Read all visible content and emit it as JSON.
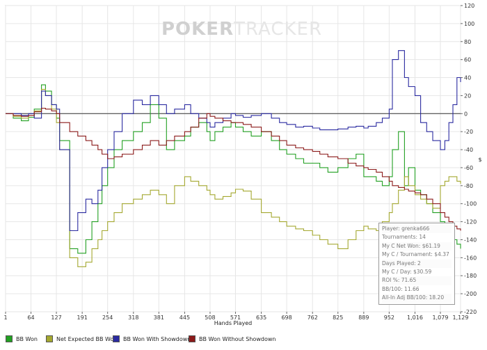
{
  "watermark": {
    "left": "POKER",
    "right": "TRACKER"
  },
  "chart_data": {
    "type": "line",
    "xlabel": "Hands Played",
    "ylabel": "$",
    "xlim": [
      1,
      1129
    ],
    "ylim": [
      -220,
      120
    ],
    "x_ticks": [
      "1",
      "64",
      "127",
      "191",
      "254",
      "318",
      "381",
      "445",
      "508",
      "571",
      "635",
      "698",
      "762",
      "825",
      "889",
      "952",
      "1,016",
      "1,079",
      "1,129"
    ],
    "y_ticks": [
      "120",
      "100",
      "80",
      "60",
      "40",
      "20",
      "0",
      "-20",
      "-40",
      "-60",
      "-80",
      "-100",
      "-120",
      "-140",
      "-160",
      "-180",
      "-200",
      "-220"
    ],
    "x_tick_values": [
      1,
      64,
      127,
      191,
      254,
      318,
      381,
      445,
      508,
      571,
      635,
      698,
      762,
      825,
      889,
      952,
      1016,
      1079,
      1129
    ],
    "y_tick_values": [
      120,
      100,
      80,
      60,
      40,
      20,
      0,
      -20,
      -40,
      -60,
      -80,
      -100,
      -120,
      -140,
      -160,
      -180,
      -200,
      -220
    ],
    "grid": true,
    "legend_position": "bottom",
    "series": [
      {
        "name": "BB Won",
        "color": "#22a022",
        "x": [
          1,
          20,
          40,
          58,
          72,
          90,
          100,
          115,
          127,
          135,
          160,
          180,
          200,
          215,
          230,
          240,
          254,
          270,
          290,
          318,
          340,
          360,
          381,
          400,
          420,
          445,
          460,
          480,
          500,
          508,
          520,
          540,
          560,
          571,
          590,
          610,
          635,
          660,
          680,
          698,
          720,
          740,
          762,
          780,
          800,
          825,
          850,
          870,
          889,
          900,
          920,
          935,
          952,
          960,
          975,
          990,
          1000,
          1016,
          1030,
          1045,
          1060,
          1079,
          1090,
          1100,
          1110,
          1120,
          1129
        ],
        "y": [
          0,
          -5,
          -8,
          -4,
          5,
          32,
          25,
          10,
          -5,
          -30,
          -150,
          -155,
          -140,
          -120,
          -100,
          -80,
          -60,
          -40,
          -30,
          -20,
          -10,
          10,
          -5,
          -40,
          -30,
          -25,
          -15,
          -10,
          -20,
          -30,
          -20,
          -15,
          -10,
          -15,
          -20,
          -25,
          -20,
          -30,
          -40,
          -45,
          -50,
          -55,
          -55,
          -60,
          -65,
          -60,
          -50,
          -45,
          -70,
          -70,
          -75,
          -80,
          -70,
          -40,
          -20,
          -80,
          -60,
          -85,
          -90,
          -100,
          -110,
          -120,
          -125,
          -130,
          -140,
          -145,
          -150
        ]
      },
      {
        "name": "Net Expected BB Won",
        "color": "#a4a830",
        "x": [
          1,
          20,
          40,
          58,
          72,
          90,
          100,
          115,
          127,
          135,
          160,
          180,
          200,
          215,
          230,
          240,
          254,
          270,
          290,
          318,
          340,
          360,
          381,
          400,
          420,
          445,
          460,
          480,
          500,
          508,
          520,
          540,
          560,
          571,
          590,
          610,
          635,
          660,
          680,
          698,
          720,
          740,
          762,
          780,
          800,
          825,
          850,
          870,
          889,
          900,
          920,
          935,
          952,
          960,
          975,
          990,
          1000,
          1016,
          1030,
          1045,
          1060,
          1079,
          1090,
          1100,
          1110,
          1120,
          1129
        ],
        "y": [
          0,
          -3,
          -5,
          -2,
          3,
          27,
          20,
          5,
          -10,
          -40,
          -160,
          -170,
          -165,
          -150,
          -140,
          -130,
          -120,
          -110,
          -100,
          -95,
          -90,
          -85,
          -90,
          -100,
          -80,
          -70,
          -75,
          -80,
          -85,
          -90,
          -95,
          -92,
          -88,
          -84,
          -86,
          -95,
          -110,
          -115,
          -120,
          -125,
          -128,
          -130,
          -135,
          -140,
          -145,
          -150,
          -140,
          -130,
          -125,
          -128,
          -130,
          -120,
          -110,
          -100,
          -85,
          -70,
          -80,
          -90,
          -95,
          -100,
          -105,
          -80,
          -75,
          -70,
          -70,
          -75,
          -78
        ]
      },
      {
        "name": "BB Won With Showdown",
        "color": "#2a2aa0",
        "x": [
          1,
          20,
          40,
          58,
          72,
          90,
          100,
          115,
          127,
          135,
          160,
          180,
          200,
          215,
          230,
          240,
          254,
          270,
          290,
          318,
          340,
          360,
          381,
          400,
          420,
          445,
          460,
          480,
          500,
          508,
          520,
          540,
          560,
          571,
          590,
          610,
          635,
          660,
          680,
          698,
          720,
          740,
          762,
          780,
          800,
          825,
          850,
          870,
          889,
          900,
          920,
          935,
          952,
          960,
          975,
          990,
          1000,
          1016,
          1030,
          1045,
          1060,
          1079,
          1090,
          1100,
          1110,
          1120,
          1129
        ],
        "y": [
          0,
          0,
          -2,
          0,
          -5,
          25,
          20,
          10,
          5,
          -40,
          -130,
          -110,
          -95,
          -100,
          -85,
          -60,
          -40,
          -20,
          0,
          15,
          10,
          20,
          10,
          0,
          5,
          10,
          0,
          -5,
          -10,
          -15,
          -10,
          -5,
          0,
          -2,
          -4,
          -2,
          0,
          -5,
          -10,
          -12,
          -15,
          -14,
          -16,
          -18,
          -18,
          -17,
          -15,
          -14,
          -16,
          -14,
          -10,
          -5,
          5,
          60,
          70,
          40,
          30,
          20,
          -10,
          -20,
          -30,
          -40,
          -30,
          -10,
          10,
          40,
          35
        ]
      },
      {
        "name": "BB Won Without Showdown",
        "color": "#8b1a1a",
        "x": [
          1,
          20,
          40,
          58,
          72,
          90,
          100,
          115,
          127,
          135,
          160,
          180,
          200,
          215,
          230,
          240,
          254,
          270,
          290,
          318,
          340,
          360,
          381,
          400,
          420,
          445,
          460,
          480,
          500,
          508,
          520,
          540,
          560,
          571,
          590,
          610,
          635,
          660,
          680,
          698,
          720,
          740,
          762,
          780,
          800,
          825,
          850,
          870,
          889,
          900,
          920,
          935,
          952,
          960,
          975,
          990,
          1000,
          1016,
          1030,
          1045,
          1060,
          1079,
          1090,
          1100,
          1110,
          1120,
          1129
        ],
        "y": [
          0,
          -2,
          -3,
          -2,
          2,
          6,
          5,
          3,
          0,
          -10,
          -20,
          -25,
          -30,
          -35,
          -40,
          -45,
          -50,
          -48,
          -45,
          -40,
          -35,
          -30,
          -35,
          -30,
          -25,
          -20,
          -15,
          -5,
          0,
          -3,
          -5,
          -8,
          -10,
          -10,
          -12,
          -15,
          -20,
          -25,
          -30,
          -35,
          -38,
          -40,
          -42,
          -45,
          -48,
          -50,
          -55,
          -58,
          -60,
          -62,
          -65,
          -70,
          -75,
          -80,
          -82,
          -84,
          -86,
          -88,
          -90,
          -95,
          -100,
          -110,
          -115,
          -120,
          -125,
          -128,
          -130
        ]
      }
    ]
  },
  "info_box": [
    "Player: grenka666",
    "Tournaments: 14",
    "My C Net Won: $61.19",
    "My C / Tournament: $4.37",
    "Days Played: 2",
    "My C / Day: $30.59",
    "ROI %: 71.65",
    "BB/100: 11.66",
    "All-In Adj BB/100: 18.20"
  ]
}
